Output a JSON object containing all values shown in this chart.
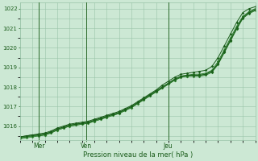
{
  "xlabel": "Pression niveau de la mer( hPa )",
  "bg_color": "#cce8d4",
  "grid_color": "#99c4a8",
  "line_colors": [
    "#1a5c1a",
    "#2a7a2a",
    "#3a8a3a",
    "#2a7a2a",
    "#1a5c1a"
  ],
  "ylim": [
    1015.3,
    1022.3
  ],
  "yticks": [
    1016,
    1017,
    1018,
    1019,
    1020,
    1021,
    1022
  ],
  "xtick_labels": [
    "Mer",
    "Ven",
    "Jeu"
  ],
  "xtick_positions": [
    0.08,
    0.28,
    0.63
  ],
  "series": [
    [
      1015.45,
      1015.5,
      1015.55,
      1015.6,
      1015.65,
      1015.75,
      1015.9,
      1016.0,
      1016.1,
      1016.15,
      1016.2,
      1016.25,
      1016.35,
      1016.45,
      1016.55,
      1016.65,
      1016.75,
      1016.9,
      1017.05,
      1017.25,
      1017.45,
      1017.65,
      1017.85,
      1018.1,
      1018.3,
      1018.5,
      1018.65,
      1018.7,
      1018.75,
      1018.8,
      1018.85,
      1019.05,
      1019.5,
      1020.1,
      1020.7,
      1021.3,
      1021.8,
      1022.0,
      1022.1
    ],
    [
      1015.4,
      1015.45,
      1015.5,
      1015.55,
      1015.6,
      1015.7,
      1015.85,
      1015.95,
      1016.05,
      1016.1,
      1016.15,
      1016.2,
      1016.3,
      1016.4,
      1016.5,
      1016.6,
      1016.7,
      1016.85,
      1017.0,
      1017.2,
      1017.4,
      1017.6,
      1017.8,
      1018.0,
      1018.2,
      1018.4,
      1018.55,
      1018.6,
      1018.65,
      1018.65,
      1018.7,
      1018.85,
      1019.3,
      1019.9,
      1020.5,
      1021.1,
      1021.6,
      1021.85,
      1022.0
    ],
    [
      1015.35,
      1015.4,
      1015.45,
      1015.5,
      1015.55,
      1015.65,
      1015.8,
      1015.9,
      1016.0,
      1016.05,
      1016.1,
      1016.15,
      1016.25,
      1016.35,
      1016.45,
      1016.55,
      1016.65,
      1016.8,
      1016.95,
      1017.15,
      1017.35,
      1017.55,
      1017.75,
      1017.95,
      1018.15,
      1018.35,
      1018.5,
      1018.55,
      1018.6,
      1018.6,
      1018.65,
      1018.8,
      1019.2,
      1019.8,
      1020.4,
      1021.0,
      1021.55,
      1021.8,
      1021.95
    ],
    [
      1015.4,
      1015.45,
      1015.5,
      1015.5,
      1015.55,
      1015.65,
      1015.8,
      1015.9,
      1016.0,
      1016.05,
      1016.1,
      1016.15,
      1016.25,
      1016.35,
      1016.45,
      1016.55,
      1016.65,
      1016.8,
      1016.95,
      1017.15,
      1017.35,
      1017.55,
      1017.75,
      1017.95,
      1018.15,
      1018.35,
      1018.5,
      1018.55,
      1018.55,
      1018.55,
      1018.6,
      1018.75,
      1019.15,
      1019.75,
      1020.35,
      1020.95,
      1021.5,
      1021.75,
      1021.9
    ],
    [
      1015.45,
      1015.5,
      1015.55,
      1015.55,
      1015.6,
      1015.7,
      1015.85,
      1015.95,
      1016.05,
      1016.1,
      1016.15,
      1016.2,
      1016.3,
      1016.4,
      1016.5,
      1016.6,
      1016.7,
      1016.85,
      1017.0,
      1017.2,
      1017.4,
      1017.6,
      1017.8,
      1018.0,
      1018.2,
      1018.4,
      1018.55,
      1018.6,
      1018.6,
      1018.6,
      1018.65,
      1018.8,
      1019.2,
      1019.8,
      1020.4,
      1021.0,
      1021.55,
      1021.8,
      1021.95
    ]
  ]
}
